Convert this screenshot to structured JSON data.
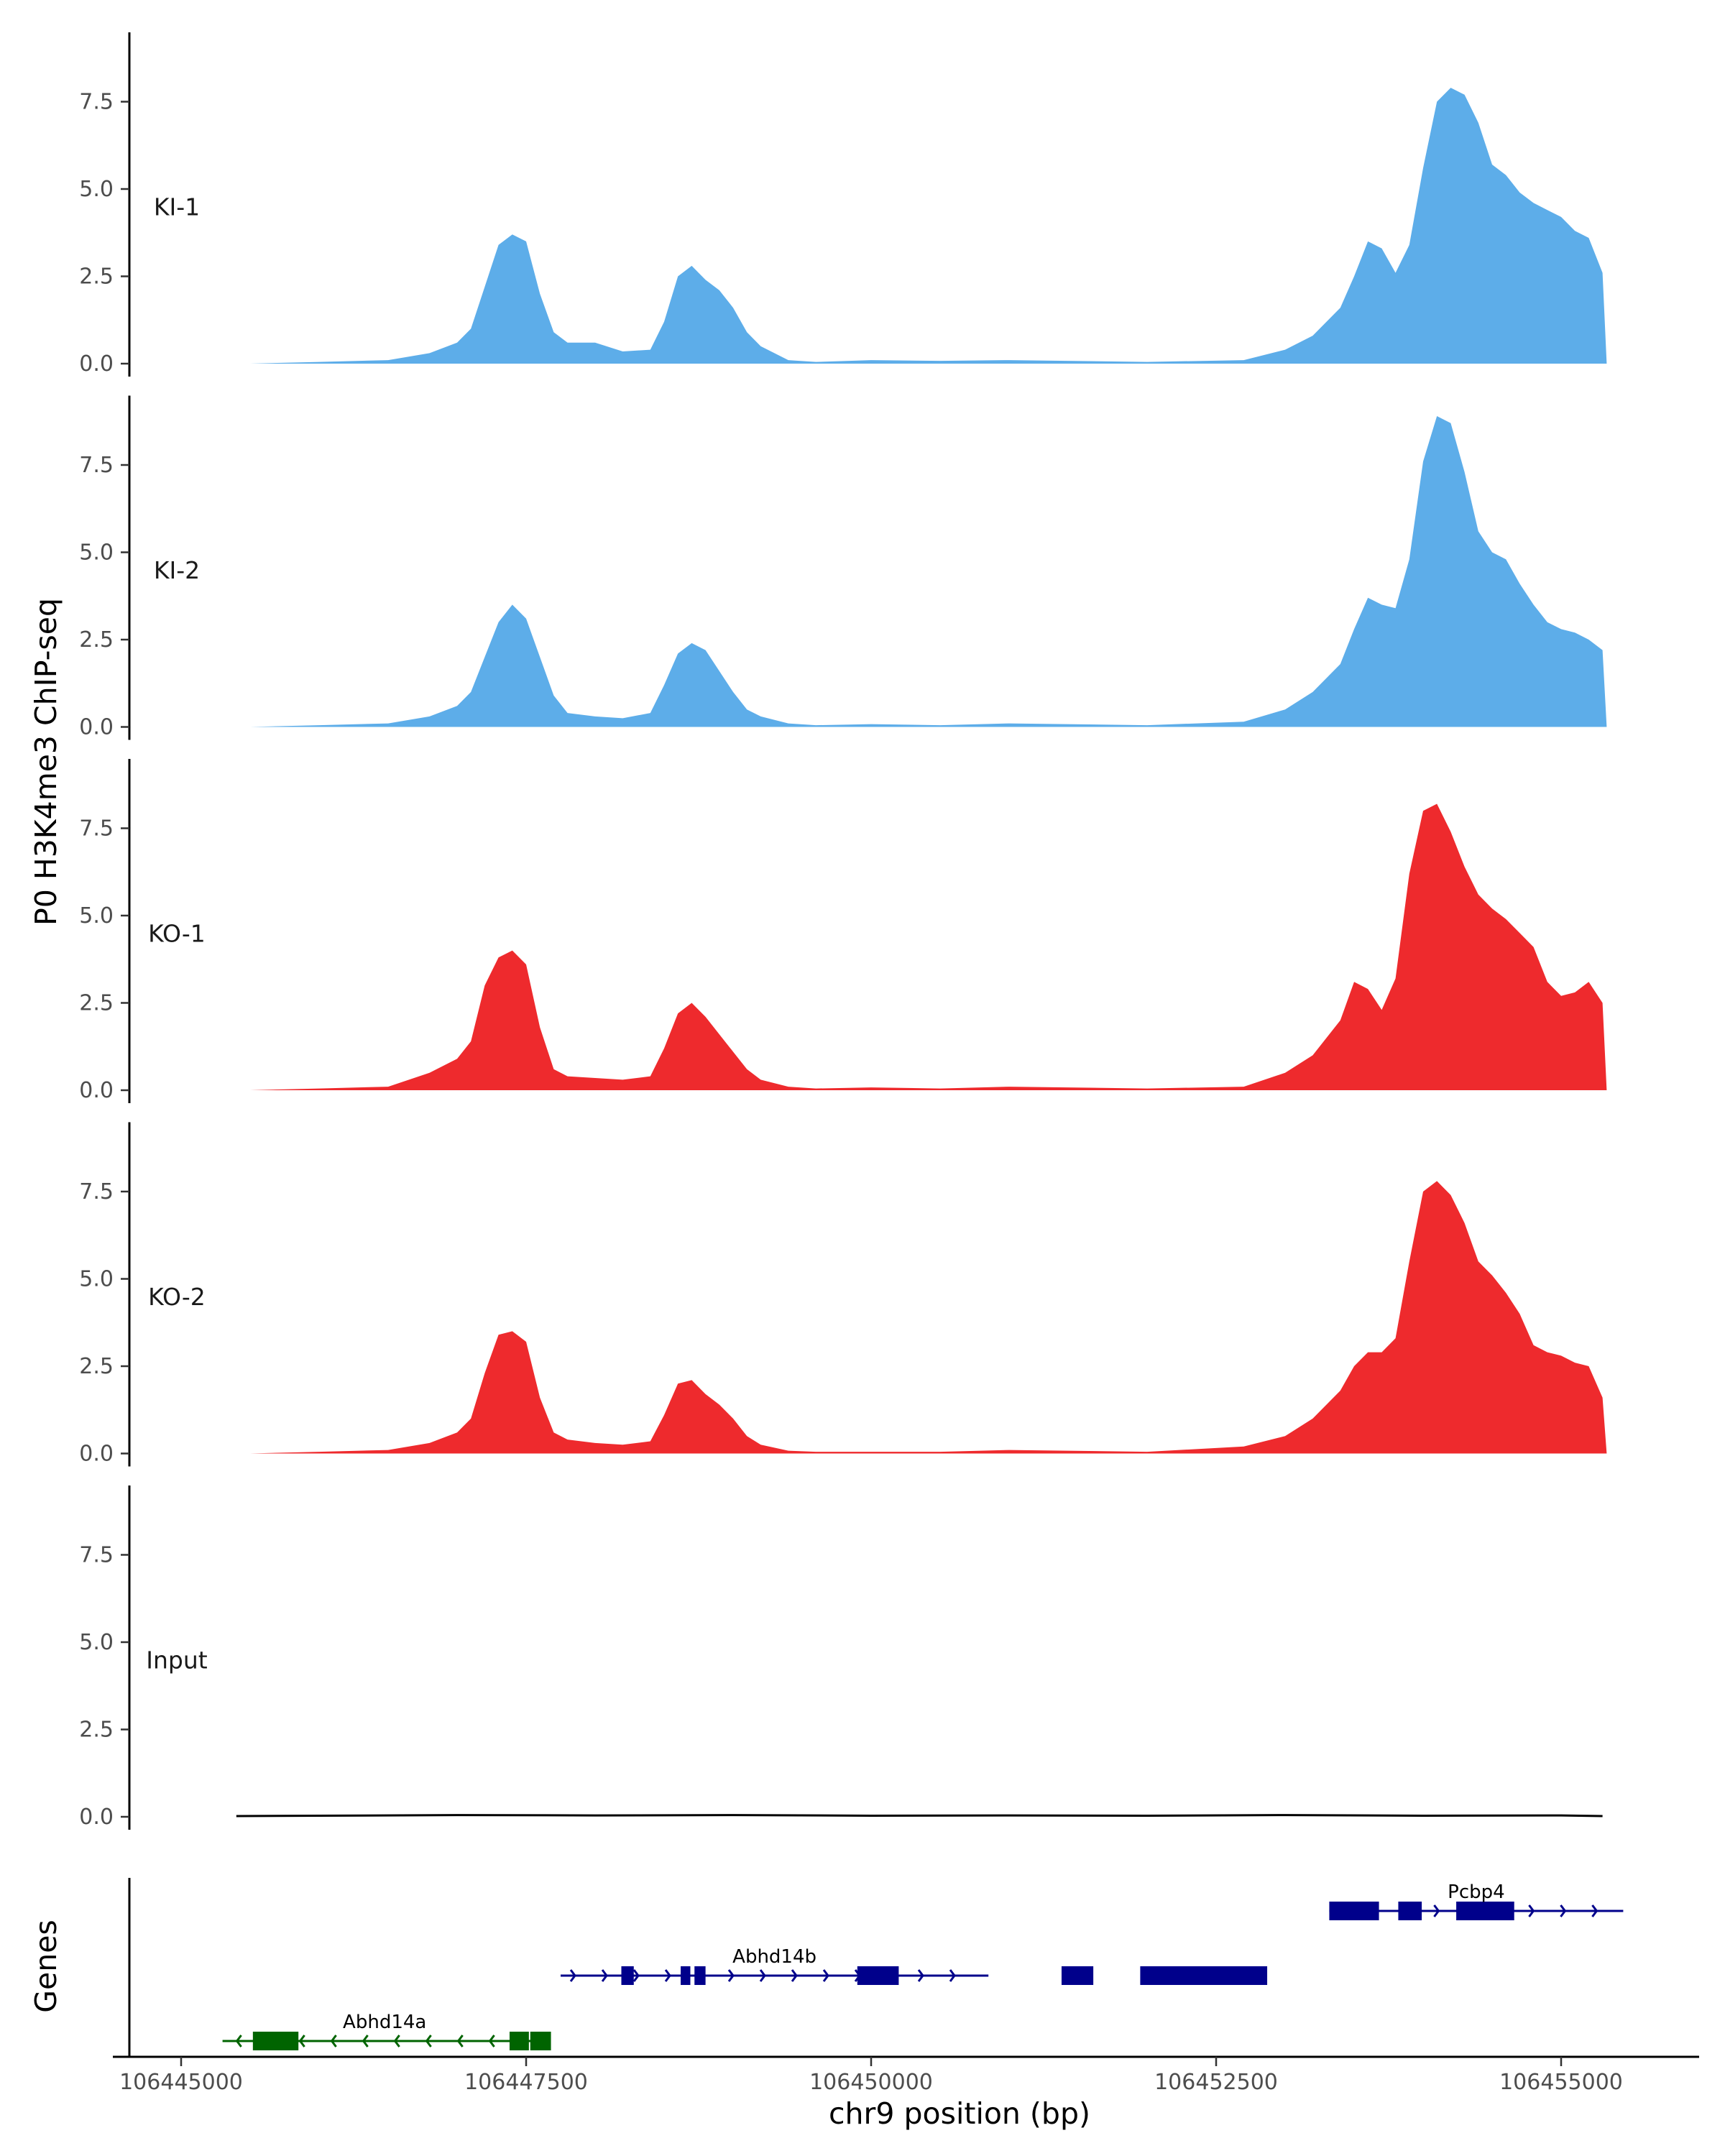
{
  "chart_data": {
    "type": "area",
    "ylabel": "P0 H3K4me3 ChIP-seq",
    "xlabel": "chr9 position (bp)",
    "genes_label": "Genes",
    "xlim": [
      106444900,
      106455900
    ],
    "ylim": [
      0,
      9.5
    ],
    "y_ticks": [
      0,
      2.5,
      5,
      7.5
    ],
    "y_tick_labels": [
      "0.0",
      "2.5",
      "5.0",
      "7.5"
    ],
    "x_ticks": [
      106445000,
      106447500,
      106450000,
      106452500,
      106455000
    ],
    "x_tick_labels": [
      "106445000",
      "106447500",
      "106450000",
      "106452500",
      "106455000"
    ],
    "grid": false,
    "series": [
      {
        "name": "KI-1",
        "color": "#5dade9",
        "x": [
          106445500,
          106446000,
          106446500,
          106446800,
          106447000,
          106447100,
          106447200,
          106447300,
          106447400,
          106447500,
          106447600,
          106447700,
          106447800,
          106448000,
          106448200,
          106448400,
          106448500,
          106448600,
          106448700,
          106448800,
          106448900,
          106449000,
          106449100,
          106449200,
          106449400,
          106449600,
          106450000,
          106450500,
          106451000,
          106452000,
          106452700,
          106453000,
          106453200,
          106453400,
          106453500,
          106453600,
          106453700,
          106453800,
          106453900,
          106454000,
          106454100,
          106454200,
          106454300,
          106454400,
          106454500,
          106454600,
          106454700,
          106454800,
          106454900,
          106455000,
          106455100,
          106455200,
          106455300,
          106455330
        ],
        "y": [
          0.0,
          0.05,
          0.1,
          0.3,
          0.6,
          1.0,
          2.2,
          3.4,
          3.7,
          3.5,
          2.0,
          0.9,
          0.6,
          0.6,
          0.35,
          0.4,
          1.2,
          2.5,
          2.8,
          2.4,
          2.1,
          1.6,
          0.9,
          0.5,
          0.1,
          0.05,
          0.1,
          0.08,
          0.1,
          0.05,
          0.1,
          0.4,
          0.8,
          1.6,
          2.5,
          3.5,
          3.3,
          2.6,
          3.4,
          5.6,
          7.5,
          7.9,
          7.7,
          6.9,
          5.7,
          5.4,
          4.9,
          4.6,
          4.4,
          4.2,
          3.8,
          3.6,
          2.6,
          0.0
        ]
      },
      {
        "name": "KI-2",
        "color": "#5dade9",
        "x": [
          106445500,
          106446000,
          106446500,
          106446800,
          106447000,
          106447100,
          106447200,
          106447300,
          106447400,
          106447500,
          106447600,
          106447700,
          106447800,
          106448000,
          106448200,
          106448400,
          106448500,
          106448600,
          106448700,
          106448800,
          106448900,
          106449000,
          106449100,
          106449200,
          106449400,
          106449600,
          106450000,
          106450500,
          106451000,
          106452000,
          106452700,
          106453000,
          106453200,
          106453400,
          106453500,
          106453600,
          106453700,
          106453800,
          106453900,
          106454000,
          106454100,
          106454200,
          106454300,
          106454400,
          106454500,
          106454600,
          106454700,
          106454800,
          106454900,
          106455000,
          106455100,
          106455200,
          106455300,
          106455330
        ],
        "y": [
          0.0,
          0.05,
          0.1,
          0.3,
          0.6,
          1.0,
          2.0,
          3.0,
          3.5,
          3.1,
          2.0,
          0.9,
          0.4,
          0.3,
          0.25,
          0.4,
          1.2,
          2.1,
          2.4,
          2.2,
          1.6,
          1.0,
          0.5,
          0.3,
          0.1,
          0.05,
          0.08,
          0.05,
          0.1,
          0.05,
          0.15,
          0.5,
          1.0,
          1.8,
          2.8,
          3.7,
          3.5,
          3.4,
          4.8,
          7.6,
          8.9,
          8.7,
          7.3,
          5.6,
          5.0,
          4.8,
          4.1,
          3.5,
          3.0,
          2.8,
          2.7,
          2.5,
          2.2,
          0.0
        ]
      },
      {
        "name": "KO-1",
        "color": "#ee2a2d",
        "x": [
          106445500,
          106446000,
          106446500,
          106446800,
          106447000,
          106447100,
          106447200,
          106447300,
          106447400,
          106447500,
          106447600,
          106447700,
          106447800,
          106448000,
          106448200,
          106448400,
          106448500,
          106448600,
          106448700,
          106448800,
          106448900,
          106449000,
          106449100,
          106449200,
          106449400,
          106449600,
          106450000,
          106450500,
          106451000,
          106452000,
          106452700,
          106453000,
          106453200,
          106453400,
          106453500,
          106453600,
          106453700,
          106453800,
          106453900,
          106454000,
          106454100,
          106454200,
          106454300,
          106454400,
          106454500,
          106454600,
          106454700,
          106454800,
          106454900,
          106455000,
          106455100,
          106455200,
          106455300,
          106455330
        ],
        "y": [
          0.0,
          0.05,
          0.1,
          0.5,
          0.9,
          1.4,
          3.0,
          3.8,
          4.0,
          3.6,
          1.8,
          0.6,
          0.4,
          0.35,
          0.3,
          0.4,
          1.2,
          2.2,
          2.5,
          2.1,
          1.6,
          1.1,
          0.6,
          0.3,
          0.1,
          0.05,
          0.08,
          0.05,
          0.1,
          0.05,
          0.1,
          0.5,
          1.0,
          2.0,
          3.1,
          2.9,
          2.3,
          3.2,
          6.2,
          8.0,
          8.2,
          7.4,
          6.4,
          5.6,
          5.2,
          4.9,
          4.5,
          4.1,
          3.1,
          2.7,
          2.8,
          3.1,
          2.5,
          0.0
        ]
      },
      {
        "name": "KO-2",
        "color": "#ee2a2d",
        "x": [
          106445500,
          106446000,
          106446500,
          106446800,
          106447000,
          106447100,
          106447200,
          106447300,
          106447400,
          106447500,
          106447600,
          106447700,
          106447800,
          106448000,
          106448200,
          106448400,
          106448500,
          106448600,
          106448700,
          106448800,
          106448900,
          106449000,
          106449100,
          106449200,
          106449400,
          106449600,
          106450000,
          106450500,
          106451000,
          106452000,
          106452700,
          106453000,
          106453200,
          106453400,
          106453500,
          106453600,
          106453700,
          106453800,
          106453900,
          106454000,
          106454100,
          106454200,
          106454300,
          106454400,
          106454500,
          106454600,
          106454700,
          106454800,
          106454900,
          106455000,
          106455100,
          106455200,
          106455300,
          106455330
        ],
        "y": [
          0.0,
          0.05,
          0.1,
          0.3,
          0.6,
          1.0,
          2.3,
          3.4,
          3.5,
          3.2,
          1.6,
          0.6,
          0.4,
          0.3,
          0.25,
          0.35,
          1.1,
          2.0,
          2.1,
          1.7,
          1.4,
          1.0,
          0.5,
          0.25,
          0.08,
          0.05,
          0.05,
          0.05,
          0.1,
          0.05,
          0.2,
          0.5,
          1.0,
          1.8,
          2.5,
          2.9,
          2.9,
          3.3,
          5.5,
          7.5,
          7.8,
          7.4,
          6.6,
          5.5,
          5.1,
          4.6,
          4.0,
          3.1,
          2.9,
          2.8,
          2.6,
          2.5,
          1.6,
          0.0
        ]
      },
      {
        "name": "Input",
        "color": "#000000",
        "x": [
          106445400,
          106446000,
          106447000,
          106448000,
          106449000,
          106450000,
          106451000,
          106452000,
          106453000,
          106454000,
          106455000,
          106455300
        ],
        "y": [
          0.02,
          0.03,
          0.05,
          0.04,
          0.05,
          0.03,
          0.04,
          0.03,
          0.05,
          0.03,
          0.04,
          0.02
        ]
      }
    ],
    "genes": [
      {
        "name": "Pcbp4",
        "strand": "+",
        "color": "#00008b",
        "row": 0,
        "start": 106453320,
        "end": 106455450,
        "exons": [
          [
            106453320,
            106453680
          ],
          [
            106453820,
            106453990
          ],
          [
            106454240,
            106454660
          ]
        ]
      },
      {
        "name": "Abhd14b",
        "strand": "+",
        "color": "#00008b",
        "row": 1,
        "start": 106447750,
        "end": 106450850,
        "exons": [
          [
            106448190,
            106448280
          ],
          [
            106448620,
            106448690
          ],
          [
            106448720,
            106448800
          ],
          [
            106449900,
            106450200
          ],
          [
            106451380,
            106451610
          ],
          [
            106451950,
            106452870
          ]
        ]
      },
      {
        "name": "Abhd14a",
        "strand": "-",
        "color": "#006400",
        "row": 2,
        "start": 106445300,
        "end": 106447650,
        "exons": [
          [
            106445520,
            106445850
          ],
          [
            106447380,
            106447520
          ],
          [
            106447530,
            106447680
          ]
        ]
      }
    ]
  }
}
